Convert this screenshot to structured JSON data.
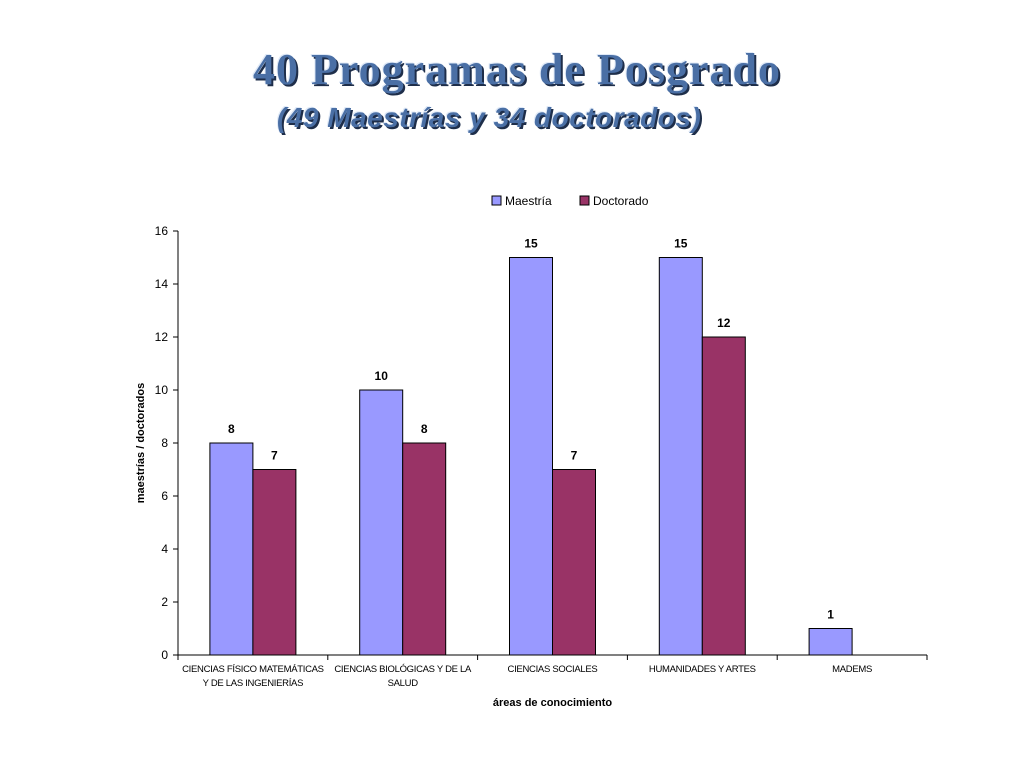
{
  "slide": {
    "title": "40 Programas de Posgrado",
    "subtitle": "(49 Maestrías y 34 doctorados)"
  },
  "chart_data": {
    "type": "bar",
    "categories": [
      [
        "CIENCIAS FÍSICO MATEMÁTICAS",
        "Y DE LAS INGENIERÍAS"
      ],
      [
        "CIENCIAS BIOLÓGICAS Y DE LA",
        "SALUD"
      ],
      [
        "CIENCIAS SOCIALES"
      ],
      [
        "HUMANIDADES Y ARTES"
      ],
      [
        "MADEMS"
      ]
    ],
    "series": [
      {
        "name": "Maestría",
        "color": "#9999ff",
        "values": [
          8,
          10,
          15,
          15,
          1
        ]
      },
      {
        "name": "Doctorado",
        "color": "#993366",
        "values": [
          7,
          8,
          7,
          12,
          null
        ]
      }
    ],
    "xlabel": "áreas de conocimiento",
    "ylabel": "maestrías / doctorados",
    "ylim": [
      0,
      16
    ],
    "yticks": [
      0,
      2,
      4,
      6,
      8,
      10,
      12,
      14,
      16
    ],
    "grid": false,
    "legend": "top"
  }
}
